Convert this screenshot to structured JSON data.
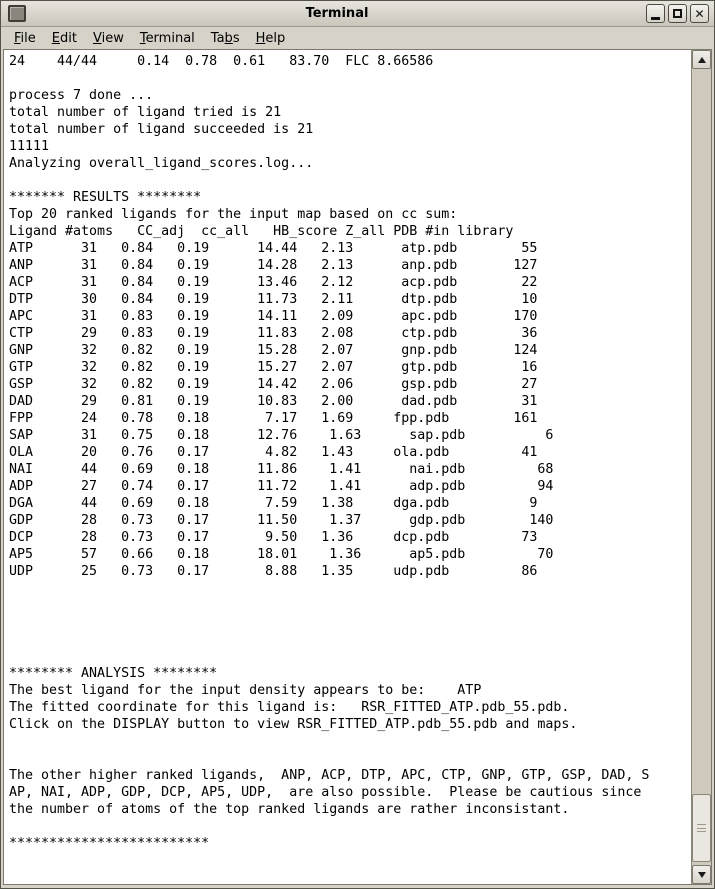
{
  "window": {
    "title": "Terminal",
    "buttons": {
      "minimize": "minimize",
      "maximize": "maximize",
      "close_glyph": "✕"
    }
  },
  "menu": {
    "items": [
      {
        "label": "File",
        "accel": 0
      },
      {
        "label": "Edit",
        "accel": 0
      },
      {
        "label": "View",
        "accel": 0
      },
      {
        "label": "Terminal",
        "accel": 0
      },
      {
        "label": "Tabs",
        "accel": 2
      },
      {
        "label": "Help",
        "accel": 0
      }
    ]
  },
  "terminal": {
    "lines": [
      "24    44/44     0.14  0.78  0.61   83.70  FLC 8.66586",
      "",
      "process 7 done ...",
      "total number of ligand tried is 21",
      "total number of ligand succeeded is 21",
      "11111",
      "Analyzing overall_ligand_scores.log...",
      "",
      "******* RESULTS ********",
      "Top 20 ranked ligands for the input map based on cc sum:",
      "Ligand #atoms   CC_adj  cc_all   HB_score Z_all PDB #in library",
      "ATP      31   0.84   0.19      14.44   2.13      atp.pdb        55",
      "ANP      31   0.84   0.19      14.28   2.13      anp.pdb       127",
      "ACP      31   0.84   0.19      13.46   2.12      acp.pdb        22",
      "DTP      30   0.84   0.19      11.73   2.11      dtp.pdb        10",
      "APC      31   0.83   0.19      14.11   2.09      apc.pdb       170",
      "CTP      29   0.83   0.19      11.83   2.08      ctp.pdb        36",
      "GNP      32   0.82   0.19      15.28   2.07      gnp.pdb       124",
      "GTP      32   0.82   0.19      15.27   2.07      gtp.pdb        16",
      "GSP      32   0.82   0.19      14.42   2.06      gsp.pdb        27",
      "DAD      29   0.81   0.19      10.83   2.00      dad.pdb        31",
      "FPP      24   0.78   0.18       7.17   1.69     fpp.pdb        161",
      "SAP      31   0.75   0.18      12.76    1.63      sap.pdb          6",
      "OLA      20   0.76   0.17       4.82   1.43     ola.pdb         41",
      "NAI      44   0.69   0.18      11.86    1.41      nai.pdb         68",
      "ADP      27   0.74   0.17      11.72    1.41      adp.pdb         94",
      "DGA      44   0.69   0.18       7.59   1.38     dga.pdb          9",
      "GDP      28   0.73   0.17      11.50    1.37      gdp.pdb        140",
      "DCP      28   0.73   0.17       9.50   1.36     dcp.pdb         73",
      "AP5      57   0.66   0.18      18.01    1.36      ap5.pdb         70",
      "UDP      25   0.73   0.17       8.88   1.35     udp.pdb         86",
      "",
      "",
      "",
      "",
      "",
      "******** ANALYSIS ********",
      "The best ligand for the input density appears to be:    ATP",
      "The fitted coordinate for this ligand is:   RSR_FITTED_ATP.pdb_55.pdb.",
      "Click on the DISPLAY button to view RSR_FITTED_ATP.pdb_55.pdb and maps.",
      "",
      "",
      "The other higher ranked ligands,  ANP, ACP, DTP, APC, CTP, GNP, GTP, GSP, DAD, S",
      "AP, NAI, ADP, GDP, DCP, AP5, UDP,  are also possible.  Please be cautious since",
      "the number of atoms of the top ranked ligands are rather inconsistant.",
      "",
      "*************************"
    ]
  },
  "results_table": {
    "headers": [
      "Ligand",
      "#atoms",
      "CC_adj",
      "cc_all",
      "HB_score",
      "Z_all",
      "PDB",
      "#in library"
    ],
    "rows": [
      [
        "ATP",
        "31",
        "0.84",
        "0.19",
        "14.44",
        "2.13",
        "atp.pdb",
        "55"
      ],
      [
        "ANP",
        "31",
        "0.84",
        "0.19",
        "14.28",
        "2.13",
        "anp.pdb",
        "127"
      ],
      [
        "ACP",
        "31",
        "0.84",
        "0.19",
        "13.46",
        "2.12",
        "acp.pdb",
        "22"
      ],
      [
        "DTP",
        "30",
        "0.84",
        "0.19",
        "11.73",
        "2.11",
        "dtp.pdb",
        "10"
      ],
      [
        "APC",
        "31",
        "0.83",
        "0.19",
        "14.11",
        "2.09",
        "apc.pdb",
        "170"
      ],
      [
        "CTP",
        "29",
        "0.83",
        "0.19",
        "11.83",
        "2.08",
        "ctp.pdb",
        "36"
      ],
      [
        "GNP",
        "32",
        "0.82",
        "0.19",
        "15.28",
        "2.07",
        "gnp.pdb",
        "124"
      ],
      [
        "GTP",
        "32",
        "0.82",
        "0.19",
        "15.27",
        "2.07",
        "gtp.pdb",
        "16"
      ],
      [
        "GSP",
        "32",
        "0.82",
        "0.19",
        "14.42",
        "2.06",
        "gsp.pdb",
        "27"
      ],
      [
        "DAD",
        "29",
        "0.81",
        "0.19",
        "10.83",
        "2.00",
        "dad.pdb",
        "31"
      ],
      [
        "FPP",
        "24",
        "0.78",
        "0.18",
        "7.17",
        "1.69",
        "fpp.pdb",
        "161"
      ],
      [
        "SAP",
        "31",
        "0.75",
        "0.18",
        "12.76",
        "1.63",
        "sap.pdb",
        "6"
      ],
      [
        "OLA",
        "20",
        "0.76",
        "0.17",
        "4.82",
        "1.43",
        "ola.pdb",
        "41"
      ],
      [
        "NAI",
        "44",
        "0.69",
        "0.18",
        "11.86",
        "1.41",
        "nai.pdb",
        "68"
      ],
      [
        "ADP",
        "27",
        "0.74",
        "0.17",
        "11.72",
        "1.41",
        "adp.pdb",
        "94"
      ],
      [
        "DGA",
        "44",
        "0.69",
        "0.18",
        "7.59",
        "1.38",
        "dga.pdb",
        "9"
      ],
      [
        "GDP",
        "28",
        "0.73",
        "0.17",
        "11.50",
        "1.37",
        "gdp.pdb",
        "140"
      ],
      [
        "DCP",
        "28",
        "0.73",
        "0.17",
        "9.50",
        "1.36",
        "dcp.pdb",
        "73"
      ],
      [
        "AP5",
        "57",
        "0.66",
        "0.18",
        "18.01",
        "1.36",
        "ap5.pdb",
        "70"
      ],
      [
        "UDP",
        "25",
        "0.73",
        "0.17",
        "8.88",
        "1.35",
        "udp.pdb",
        "86"
      ]
    ]
  },
  "analysis": {
    "best_ligand": "ATP",
    "fitted_coordinate": "RSR_FITTED_ATP.pdb_55.pdb"
  },
  "colors": {
    "window_chrome": "#d6d2c8",
    "terminal_bg": "#ffffff",
    "terminal_fg": "#000000"
  }
}
